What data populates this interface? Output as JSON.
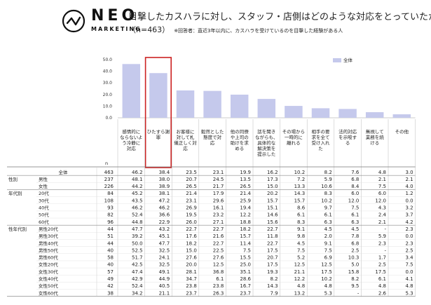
{
  "header": {
    "logo_text": "NEO",
    "logo_sub": "MARKETING",
    "title": "目撃したカスハラに対し、スタッフ・店側はどのような対応をとっていたか",
    "n_label": "（n=463）",
    "note": "※回答者：直近3年以内に、カスハラを受けているのを目撃した経験がある人"
  },
  "chart_data": {
    "type": "bar",
    "title": "目撃したカスハラに対し、スタッフ・店側はどのような対応をとっていたか",
    "ylim": [
      0,
      50
    ],
    "yticks": [
      "0.0",
      "10.0",
      "20.0",
      "30.0",
      "40.0",
      "50.0"
    ],
    "legend": [
      "全体"
    ],
    "legend_position": "top-right",
    "highlight_index": 1,
    "bar_color": "#c5c9ec",
    "highlight_color": "#cc2222",
    "categories": [
      "感情的にならないよう冷静に対応",
      "ひたすら謝罪",
      "お客様に対して札儀正しく対応",
      "毅然とした態度で対応",
      "他の同僚や上司の助けを求める",
      "話を聞きながらも、具体的な解決策を提示した",
      "その場から一時的に離れる",
      "相手の要求を全て受け入れた",
      "法的対応を示唆する",
      "無視して業務を続ける",
      "その他"
    ],
    "category_lines": [
      [
        "感情的に",
        "ならないよ",
        "う冷静に",
        "対応"
      ],
      [
        "ひたすら謝",
        "罪"
      ],
      [
        "お客様に",
        "対して札",
        "儀正しく対",
        "応"
      ],
      [
        "毅然とした",
        "態度で対",
        "応"
      ],
      [
        "他の同僚",
        "や上司の",
        "助けを求",
        "める"
      ],
      [
        "話を聞き",
        "ながらも、",
        "具体的な",
        "解決策を",
        "提示した"
      ],
      [
        "その場から",
        "一時的に",
        "離れる"
      ],
      [
        "相手の要",
        "求を全て",
        "受け入れ",
        "た"
      ],
      [
        "法的対応",
        "を示唆す",
        "る"
      ],
      [
        "無視して",
        "業務を続",
        "ける"
      ],
      [
        "その他"
      ]
    ],
    "n_header": "n",
    "rows": [
      {
        "group": "",
        "label": "全体",
        "n": "463",
        "values": [
          "46.2",
          "38.4",
          "23.5",
          "23.1",
          "19.9",
          "16.2",
          "10.2",
          "8.2",
          "7.6",
          "4.8",
          "3.0"
        ]
      },
      {
        "group": "性別",
        "label": "男性",
        "n": "237",
        "values": [
          "48.1",
          "38.0",
          "20.7",
          "24.5",
          "13.5",
          "17.3",
          "7.2",
          "5.9",
          "6.8",
          "2.1",
          "2.1"
        ]
      },
      {
        "group": "",
        "label": "女性",
        "n": "226",
        "values": [
          "44.2",
          "38.9",
          "26.5",
          "21.7",
          "26.5",
          "15.0",
          "13.3",
          "10.6",
          "8.4",
          "7.5",
          "4.0"
        ]
      },
      {
        "group": "年代別",
        "label": "20代",
        "n": "84",
        "values": [
          "45.2",
          "38.1",
          "21.4",
          "17.9",
          "21.4",
          "20.2",
          "14.3",
          "8.3",
          "6.0",
          "6.0",
          "1.2"
        ]
      },
      {
        "group": "",
        "label": "30代",
        "n": "108",
        "values": [
          "43.5",
          "47.2",
          "23.1",
          "29.6",
          "25.9",
          "15.7",
          "15.7",
          "10.2",
          "12.0",
          "12.0",
          "0.0"
        ]
      },
      {
        "group": "",
        "label": "40代",
        "n": "93",
        "values": [
          "46.2",
          "46.2",
          "26.9",
          "16.1",
          "19.4",
          "15.1",
          "8.6",
          "9.7",
          "7.5",
          "4.3",
          "3.2"
        ]
      },
      {
        "group": "",
        "label": "50代",
        "n": "82",
        "values": [
          "52.4",
          "36.6",
          "19.5",
          "23.2",
          "12.2",
          "14.6",
          "6.1",
          "6.1",
          "6.1",
          "2.4",
          "3.7"
        ]
      },
      {
        "group": "",
        "label": "60代",
        "n": "96",
        "values": [
          "44.8",
          "22.9",
          "26.0",
          "27.1",
          "18.8",
          "15.6",
          "8.3",
          "6.3",
          "6.3",
          "2.1",
          "4.2"
        ]
      },
      {
        "group": "性年代別",
        "label": "男性20代",
        "n": "44",
        "values": [
          "47.7",
          "43.2",
          "22.7",
          "22.7",
          "18.2",
          "22.7",
          "9.1",
          "4.5",
          "4.5",
          "-",
          "2.3"
        ]
      },
      {
        "group": "",
        "label": "男性30代",
        "n": "51",
        "values": [
          "39.2",
          "45.1",
          "17.6",
          "21.6",
          "15.7",
          "11.8",
          "9.8",
          "2.0",
          "7.8",
          "5.9",
          "0.0"
        ]
      },
      {
        "group": "",
        "label": "男性40代",
        "n": "44",
        "values": [
          "50.0",
          "47.7",
          "18.2",
          "22.7",
          "11.4",
          "22.7",
          "4.5",
          "9.1",
          "6.8",
          "2.3",
          "2.3"
        ]
      },
      {
        "group": "",
        "label": "男性50代",
        "n": "40",
        "values": [
          "52.5",
          "32.5",
          "15.0",
          "22.5",
          "7.5",
          "17.5",
          "7.5",
          "7.5",
          "2.5",
          "-",
          "2.5"
        ]
      },
      {
        "group": "",
        "label": "男性60代",
        "n": "58",
        "values": [
          "51.7",
          "24.1",
          "27.6",
          "27.6",
          "15.5",
          "20.7",
          "5.2",
          "6.9",
          "10.3",
          "1.7",
          "3.4"
        ]
      },
      {
        "group": "",
        "label": "女性20代",
        "n": "40",
        "values": [
          "42.5",
          "32.5",
          "20.0",
          "12.5",
          "25.0",
          "17.5",
          "12.5",
          "12.5",
          "5.0",
          "2.5",
          "7.5"
        ]
      },
      {
        "group": "",
        "label": "女性30代",
        "n": "57",
        "values": [
          "47.4",
          "49.1",
          "28.1",
          "36.8",
          "35.1",
          "19.3",
          "21.1",
          "17.5",
          "15.8",
          "17.5",
          "0.0"
        ]
      },
      {
        "group": "",
        "label": "女性40代",
        "n": "49",
        "values": [
          "42.9",
          "44.9",
          "34.7",
          "6.1",
          "28.6",
          "8.2",
          "12.2",
          "10.2",
          "8.2",
          "6.1",
          "4.1"
        ]
      },
      {
        "group": "",
        "label": "女性50代",
        "n": "42",
        "values": [
          "52.4",
          "40.5",
          "23.8",
          "23.8",
          "16.7",
          "14.3",
          "4.8",
          "4.8",
          "9.5",
          "4.8",
          "4.8"
        ]
      },
      {
        "group": "",
        "label": "女性60代",
        "n": "38",
        "values": [
          "34.2",
          "21.1",
          "23.7",
          "26.3",
          "23.7",
          "7.9",
          "13.2",
          "5.3",
          "-",
          "2.6",
          "5.3"
        ]
      }
    ]
  }
}
